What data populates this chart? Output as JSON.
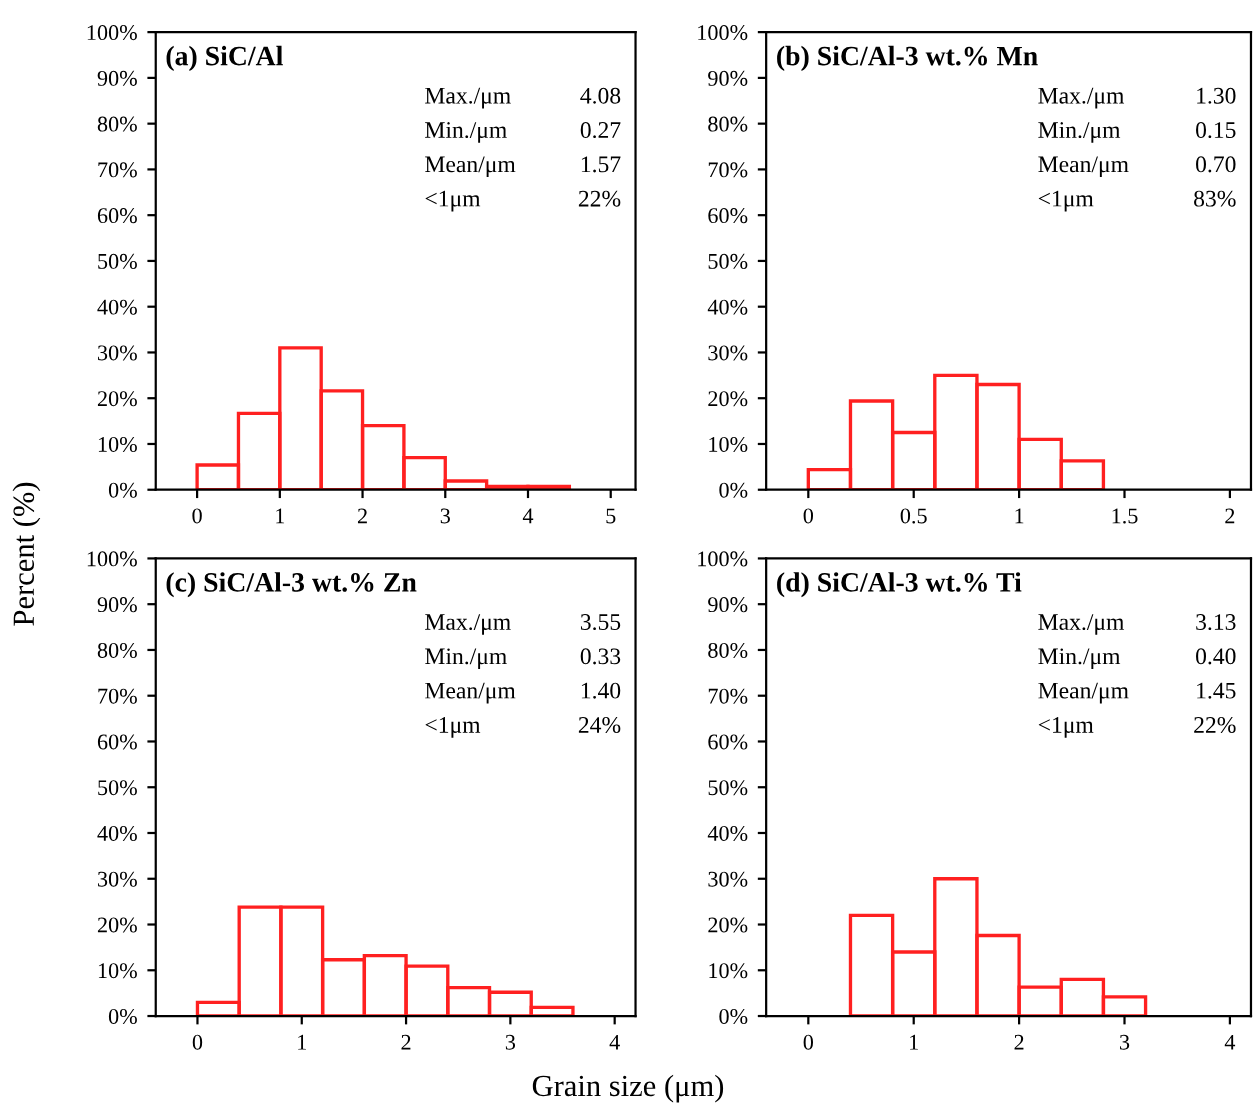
{
  "chart_data": [
    {
      "type": "histogram",
      "title": "(a) SiC/Al",
      "ylabel": "Percent (%)",
      "bins": [
        0,
        0.5,
        1.0,
        1.5,
        2.0,
        2.5,
        3.0,
        3.5,
        4.0,
        4.5
      ],
      "values": [
        5.4,
        16.7,
        31,
        21.6,
        14,
        7,
        1.9,
        0.7,
        0.7
      ],
      "color": "#ff2020",
      "xlim": [
        -0.5,
        5.3
      ],
      "xticks": [
        0,
        1,
        2,
        3,
        4,
        5
      ],
      "ylim": [
        0,
        100
      ],
      "yticks": [
        {
          "value": 0,
          "label": "0%"
        },
        {
          "value": 10,
          "label": "10%"
        },
        {
          "value": 20,
          "label": "20%"
        },
        {
          "value": 30,
          "label": "30%"
        },
        {
          "value": 40,
          "label": "40%"
        },
        {
          "value": 50,
          "label": "50%"
        },
        {
          "value": 60,
          "label": "60%"
        },
        {
          "value": 70,
          "label": "70%"
        },
        {
          "value": 80,
          "label": "80%"
        },
        {
          "value": 90,
          "label": "90%"
        },
        {
          "value": 100,
          "label": "100%"
        }
      ],
      "annotations": [
        "Max./μm\t4.08",
        "Min./μm\t0.27",
        "Mean/μm\t1.57",
        "<1μm\t22%"
      ],
      "grid": false,
      "legend": false
    },
    {
      "type": "histogram",
      "title": "(b) SiC/Al-3 wt.% Mn",
      "bins": [
        0,
        0.2,
        0.4,
        0.6,
        0.8,
        1.0,
        1.2,
        1.4
      ],
      "values": [
        4.4,
        19.4,
        12.5,
        25,
        23,
        11,
        6.3
      ],
      "color": "#ff2020",
      "xlim": [
        -0.2,
        2.1
      ],
      "xticks": [
        0,
        0.5,
        1,
        1.5,
        2
      ],
      "ylim": [
        0,
        100
      ],
      "yticks": [
        {
          "value": 0,
          "label": "0%"
        },
        {
          "value": 10,
          "label": "10%"
        },
        {
          "value": 20,
          "label": "20%"
        },
        {
          "value": 30,
          "label": "30%"
        },
        {
          "value": 40,
          "label": "40%"
        },
        {
          "value": 50,
          "label": "50%"
        },
        {
          "value": 60,
          "label": "60%"
        },
        {
          "value": 70,
          "label": "70%"
        },
        {
          "value": 80,
          "label": "80%"
        },
        {
          "value": 90,
          "label": "90%"
        },
        {
          "value": 100,
          "label": "100%"
        }
      ],
      "annotations": [
        "Max./μm\t1.30",
        "Min./μm\t0.15",
        "Mean/μm\t0.70",
        "<1μm\t83%"
      ],
      "grid": false,
      "legend": false
    },
    {
      "type": "histogram",
      "title": "(c) SiC/Al-3 wt.% Zn",
      "bins": [
        0,
        0.4,
        0.8,
        1.2,
        1.6,
        2.0,
        2.4,
        2.8,
        3.2,
        3.6
      ],
      "values": [
        3,
        23.8,
        23.8,
        12.3,
        13.2,
        10.9,
        6.2,
        5.2,
        1.9
      ],
      "color": "#ff2020",
      "xlim": [
        -0.4,
        4.2
      ],
      "xticks": [
        0,
        1,
        2,
        3,
        4
      ],
      "ylim": [
        0,
        100
      ],
      "yticks": [
        {
          "value": 0,
          "label": "0%"
        },
        {
          "value": 10,
          "label": "10%"
        },
        {
          "value": 20,
          "label": "20%"
        },
        {
          "value": 30,
          "label": "30%"
        },
        {
          "value": 40,
          "label": "40%"
        },
        {
          "value": 50,
          "label": "50%"
        },
        {
          "value": 60,
          "label": "60%"
        },
        {
          "value": 70,
          "label": "70%"
        },
        {
          "value": 80,
          "label": "80%"
        },
        {
          "value": 90,
          "label": "90%"
        },
        {
          "value": 100,
          "label": "100%"
        }
      ],
      "annotations": [
        "Max./μm\t3.55",
        "Min./μm\t0.33",
        "Mean/μm\t1.40",
        "<1μm\t24%"
      ],
      "grid": false,
      "legend": false
    },
    {
      "type": "histogram",
      "title": "(d) SiC/Al-3 wt.% Ti",
      "xlabel": "Grain size (μm)",
      "bins": [
        0.4,
        0.8,
        1.2,
        1.6,
        2.0,
        2.4,
        2.8,
        3.2
      ],
      "values": [
        22,
        14,
        30,
        17.6,
        6.3,
        8,
        4.2
      ],
      "color": "#ff2020",
      "xlim": [
        -0.4,
        4.2
      ],
      "xticks": [
        0,
        1,
        2,
        3,
        4
      ],
      "ylim": [
        0,
        100
      ],
      "yticks": [
        {
          "value": 0,
          "label": "0%"
        },
        {
          "value": 10,
          "label": "10%"
        },
        {
          "value": 20,
          "label": "20%"
        },
        {
          "value": 30,
          "label": "30%"
        },
        {
          "value": 40,
          "label": "40%"
        },
        {
          "value": 50,
          "label": "50%"
        },
        {
          "value": 60,
          "label": "60%"
        },
        {
          "value": 70,
          "label": "70%"
        },
        {
          "value": 80,
          "label": "80%"
        },
        {
          "value": 90,
          "label": "90%"
        },
        {
          "value": 100,
          "label": "100%"
        }
      ],
      "annotations": [
        "Max./μm\t3.13",
        "Min./μm\t0.40",
        "Mean/μm\t1.45",
        "<1μm\t22%"
      ],
      "grid": false,
      "legend": false
    }
  ]
}
